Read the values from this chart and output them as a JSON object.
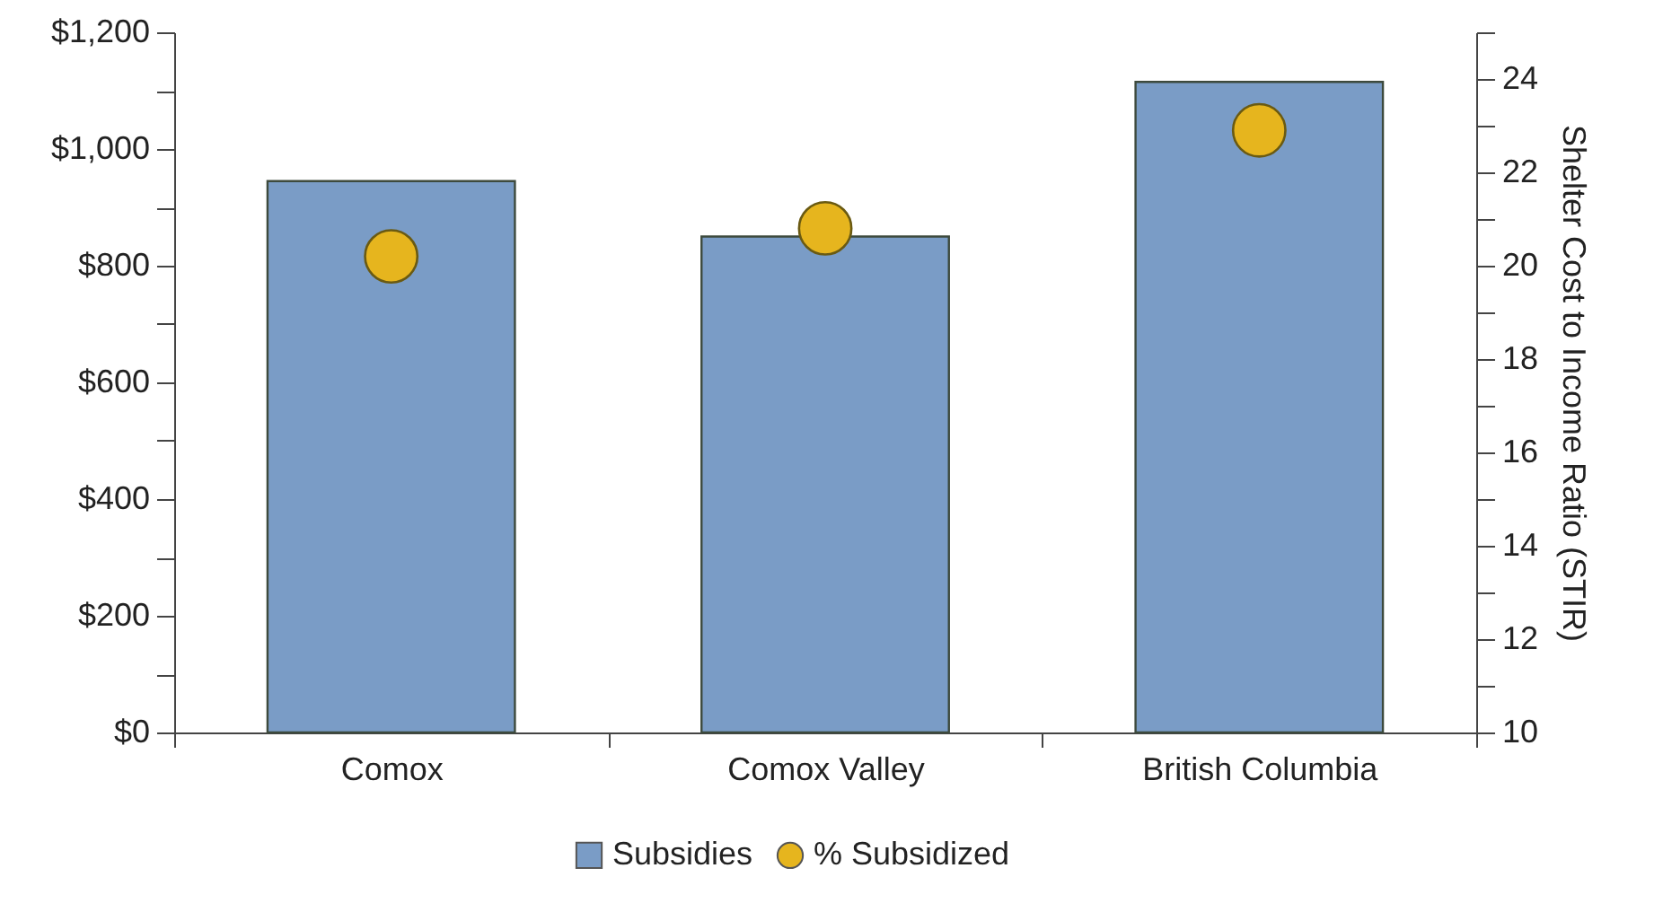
{
  "chart_data": {
    "type": "bar",
    "categories": [
      "Comox",
      "Comox Valley",
      "British Columbia"
    ],
    "series": [
      {
        "name": "Subsidies",
        "color": "#7a9cc6",
        "values": [
          945,
          850,
          1115
        ]
      },
      {
        "name": "% Subsidized",
        "type": "scatter",
        "axis": "y2",
        "color": "#e6b51e",
        "values": [
          20.2,
          20.8,
          22.9
        ]
      }
    ],
    "ylim": [
      0,
      1200
    ],
    "yticks": [
      {
        "value": 0,
        "label": "$0"
      },
      {
        "value": 100,
        "label": null
      },
      {
        "value": 200,
        "label": "$200"
      },
      {
        "value": 300,
        "label": null
      },
      {
        "value": 400,
        "label": "$400"
      },
      {
        "value": 500,
        "label": null
      },
      {
        "value": 600,
        "label": "$600"
      },
      {
        "value": 700,
        "label": null
      },
      {
        "value": 800,
        "label": "$800"
      },
      {
        "value": 900,
        "label": null
      },
      {
        "value": 1000,
        "label": "$1,000"
      },
      {
        "value": 1100,
        "label": null
      },
      {
        "value": 1200,
        "label": "$1,200"
      }
    ],
    "y2label": "Shelter Cost to Income Ratio (STIR)",
    "y2lim": [
      10,
      25
    ],
    "y2ticks": [
      10,
      {
        "value": 11,
        "label": null
      },
      12,
      {
        "value": 13,
        "label": null
      },
      14,
      {
        "value": 15,
        "label": null
      },
      16,
      {
        "value": 17,
        "label": null
      },
      18,
      {
        "value": 19,
        "label": null
      },
      20,
      {
        "value": 21,
        "label": null
      },
      22,
      {
        "value": 23,
        "label": null
      },
      24,
      {
        "value": 25,
        "label": null
      }
    ],
    "marker": "circle",
    "legend": "bottom"
  }
}
